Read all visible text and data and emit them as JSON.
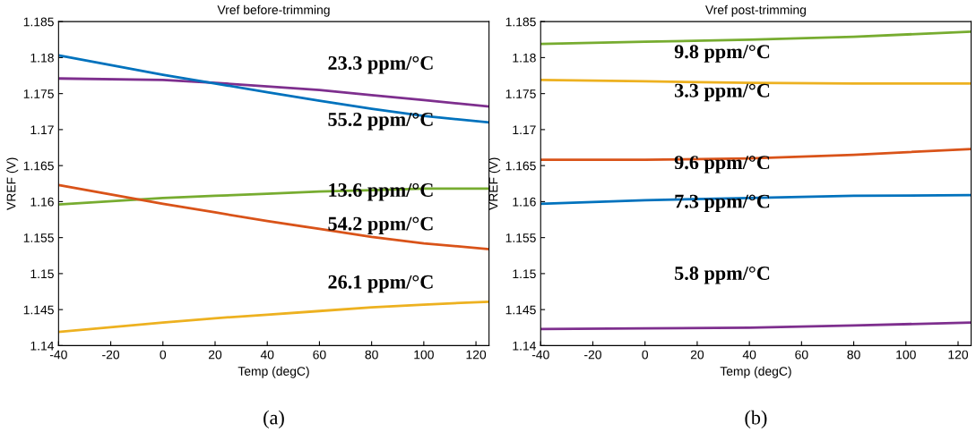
{
  "chart_data": [
    {
      "type": "line",
      "title": "Vref before-trimming",
      "xlabel": "Temp (degC)",
      "ylabel": "VREF (V)",
      "x": [
        -40,
        0,
        20,
        40,
        60,
        80,
        100,
        125
      ],
      "xlim": [
        -40,
        125
      ],
      "ylim": [
        1.14,
        1.185
      ],
      "xticks": [
        -40,
        -20,
        0,
        20,
        40,
        60,
        80,
        100,
        120
      ],
      "yticks": [
        1.14,
        1.145,
        1.15,
        1.155,
        1.16,
        1.165,
        1.17,
        1.175,
        1.18,
        1.185
      ],
      "grid": false,
      "series": [
        {
          "color": "#7e2f8e",
          "values": [
            1.1771,
            1.1769,
            1.1765,
            1.176,
            1.1755,
            1.1748,
            1.1741,
            1.1732
          ]
        },
        {
          "color": "#0072bd",
          "values": [
            1.1803,
            1.1776,
            1.1764,
            1.1752,
            1.174,
            1.1729,
            1.1719,
            1.171
          ]
        },
        {
          "color": "#77ac30",
          "values": [
            1.1596,
            1.1605,
            1.1608,
            1.1611,
            1.1614,
            1.1616,
            1.1618,
            1.1618
          ]
        },
        {
          "color": "#d95319",
          "values": [
            1.1623,
            1.1597,
            1.1585,
            1.1573,
            1.1562,
            1.1551,
            1.1542,
            1.1534
          ]
        },
        {
          "color": "#edb120",
          "values": [
            1.1419,
            1.1432,
            1.1438,
            1.1443,
            1.1448,
            1.1453,
            1.1457,
            1.1461
          ]
        }
      ],
      "annotations": [
        "23.3 ppm/°C",
        "55.2 ppm/°C",
        "13.6 ppm/°C",
        "54.2 ppm/°C",
        "26.1 ppm/°C",
        "(a)"
      ]
    },
    {
      "type": "line",
      "title": "Vref post-trimming",
      "xlabel": "Temp (degC)",
      "ylabel": "VREF (V)",
      "x": [
        -40,
        0,
        40,
        80,
        125
      ],
      "xlim": [
        -40,
        125
      ],
      "ylim": [
        1.14,
        1.185
      ],
      "xticks": [
        -40,
        -20,
        0,
        20,
        40,
        60,
        80,
        100,
        120
      ],
      "yticks": [
        1.14,
        1.145,
        1.15,
        1.155,
        1.16,
        1.165,
        1.17,
        1.175,
        1.18,
        1.185
      ],
      "grid": false,
      "series": [
        {
          "color": "#77ac30",
          "values": [
            1.1819,
            1.1822,
            1.1825,
            1.1829,
            1.1836
          ]
        },
        {
          "color": "#edb120",
          "values": [
            1.1769,
            1.1767,
            1.1765,
            1.1764,
            1.1764
          ]
        },
        {
          "color": "#d95319",
          "values": [
            1.1658,
            1.1658,
            1.166,
            1.1665,
            1.1673
          ]
        },
        {
          "color": "#0072bd",
          "values": [
            1.1597,
            1.1602,
            1.1605,
            1.1608,
            1.1609
          ]
        },
        {
          "color": "#7e2f8e",
          "values": [
            1.1423,
            1.1424,
            1.1425,
            1.1428,
            1.1432
          ]
        }
      ],
      "annotations": [
        "9.8 ppm/°C",
        "3.3 ppm/°C",
        "9.6 ppm/°C",
        "7.3 ppm/°C",
        "5.8 ppm/°C",
        "(b)"
      ]
    }
  ]
}
